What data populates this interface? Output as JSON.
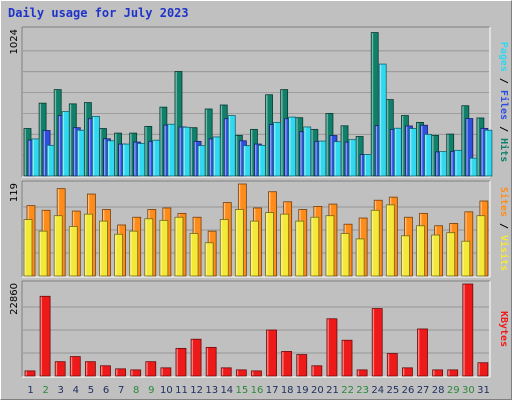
{
  "title": "Daily usage for July 2023",
  "colors": {
    "background": "#c0c0c0",
    "title": "#1f33c8",
    "hits": "#10806a",
    "files": "#2f4fe0",
    "pages": "#30d8f0",
    "visits": "#f4e838",
    "sites": "#ff8c1a",
    "kbytes": "#ee1a1a",
    "weekend_day": "#2a8a3a",
    "weekday": "#203060"
  },
  "chart_data": [
    {
      "type": "bar",
      "ylabel": "Pages / Files / Hits",
      "ylabel_parts": [
        "Pages",
        "/",
        "Files",
        "/",
        "Hits"
      ],
      "ymax_label": "1024",
      "ylim": [
        0,
        1024
      ],
      "categories": [
        "1",
        "2",
        "3",
        "4",
        "5",
        "6",
        "7",
        "8",
        "9",
        "10",
        "11",
        "12",
        "13",
        "14",
        "15",
        "16",
        "17",
        "18",
        "19",
        "20",
        "21",
        "22",
        "23",
        "24",
        "25",
        "26",
        "27",
        "28",
        "29",
        "30",
        "31"
      ],
      "series": [
        {
          "name": "Hits",
          "values": [
            333,
            511,
            606,
            506,
            515,
            333,
            301,
            301,
            348,
            483,
            733,
            339,
            470,
            498,
            285,
            327,
            570,
            606,
            409,
            327,
            439,
            352,
            277,
            1006,
            536,
            424,
            376,
            285,
            294,
            493,
            407
          ]
        },
        {
          "name": "Files",
          "values": [
            252,
            319,
            424,
            339,
            402,
            261,
            224,
            238,
            243,
            357,
            344,
            243,
            261,
            402,
            247,
            224,
            361,
            402,
            311,
            243,
            284,
            238,
            151,
            353,
            327,
            351,
            356,
            169,
            173,
            403,
            334
          ]
        },
        {
          "name": "Pages",
          "values": [
            260,
            215,
            452,
            321,
            418,
            247,
            224,
            228,
            251,
            363,
            342,
            213,
            274,
            424,
            213,
            215,
            376,
            413,
            344,
            245,
            241,
            255,
            151,
            785,
            335,
            333,
            292,
            171,
            180,
            125,
            321
          ]
        }
      ],
      "day_colors": [
        "weekday",
        "weekend_day",
        "weekday",
        "weekday",
        "weekday",
        "weekday",
        "weekday",
        "weekend_day",
        "weekend_day",
        "weekday",
        "weekday",
        "weekday",
        "weekday",
        "weekday",
        "weekend_day",
        "weekend_day",
        "weekday",
        "weekday",
        "weekday",
        "weekday",
        "weekday",
        "weekend_day",
        "weekend_day",
        "weekday",
        "weekday",
        "weekday",
        "weekday",
        "weekday",
        "weekend_day",
        "weekend_day",
        "weekday"
      ]
    },
    {
      "type": "bar",
      "ylabel": "Sites / Visits",
      "ylabel_parts": [
        "Sites",
        "/",
        "Visits"
      ],
      "ymax_label": "119",
      "ylim": [
        0,
        119
      ],
      "categories": [
        "1",
        "2",
        "3",
        "4",
        "5",
        "6",
        "7",
        "8",
        "9",
        "10",
        "11",
        "12",
        "13",
        "14",
        "15",
        "16",
        "17",
        "18",
        "19",
        "20",
        "21",
        "22",
        "23",
        "24",
        "25",
        "26",
        "27",
        "28",
        "29",
        "30",
        "31"
      ],
      "series": [
        {
          "name": "Sites",
          "values": [
            91,
            85,
            113,
            84,
            106,
            86,
            66,
            76,
            86,
            88,
            81,
            76,
            58,
            95,
            122,
            88,
            109,
            96,
            86,
            90,
            93,
            67,
            75,
            98,
            102,
            76,
            81,
            65,
            68,
            83,
            97
          ]
        },
        {
          "name": "Visits",
          "values": [
            73,
            58,
            78,
            64,
            80,
            71,
            54,
            58,
            74,
            72,
            76,
            55,
            43,
            73,
            86,
            71,
            82,
            80,
            71,
            76,
            78,
            55,
            48,
            85,
            92,
            52,
            65,
            53,
            56,
            45,
            78
          ]
        }
      ]
    },
    {
      "type": "bar",
      "ylabel": "KBytes",
      "ymax_label": "22860",
      "ylim": [
        0,
        22860
      ],
      "categories": [
        "1",
        "2",
        "3",
        "4",
        "5",
        "6",
        "7",
        "8",
        "9",
        "10",
        "11",
        "12",
        "13",
        "14",
        "15",
        "16",
        "17",
        "18",
        "19",
        "20",
        "21",
        "22",
        "23",
        "24",
        "25",
        "26",
        "27",
        "28",
        "29",
        "30",
        "31"
      ],
      "series": [
        {
          "name": "KBytes",
          "values": [
            1270,
            19810,
            3560,
            4830,
            3560,
            2540,
            1780,
            1520,
            3560,
            2030,
            6860,
            9140,
            7110,
            2030,
            1520,
            1270,
            11430,
            6100,
            5330,
            2540,
            14220,
            8890,
            1520,
            16760,
            5590,
            2030,
            11690,
            1520,
            1520,
            22860,
            3300
          ]
        }
      ]
    }
  ]
}
